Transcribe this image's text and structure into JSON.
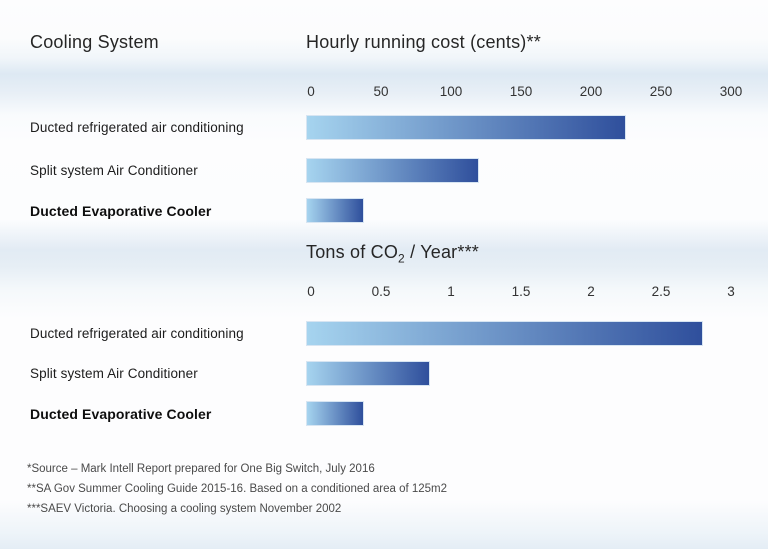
{
  "page": {
    "left_header": "Cooling System",
    "footnotes": [
      "*Source – Mark Intell Report prepared for One Big Switch, July 2016",
      "**SA Gov Summer Cooling Guide 2015-16. Based on a conditioned area of 125m2",
      "***SAEV Victoria. Choosing a cooling system November 2002"
    ],
    "colors": {
      "bar_gradient_start": "#a6d4ef",
      "bar_gradient_end": "#2f4f9c",
      "background_band": "#dde9f3",
      "text_dark": "#262626",
      "footnote_gray": "#4a4a4a"
    }
  },
  "chart_data": [
    {
      "type": "bar",
      "orientation": "horizontal",
      "title": "Hourly running cost (cents)**",
      "categories": [
        "Ducted refrigerated air conditioning",
        "Split system Air Conditioner",
        "Ducted Evaporative Cooler"
      ],
      "values": [
        225,
        120,
        38
      ],
      "xlim": [
        0,
        300
      ],
      "ticks": [
        "0",
        "50",
        "100",
        "150",
        "200",
        "250",
        "300"
      ],
      "bold_category_index": 2,
      "xlabel": "",
      "ylabel": "Cooling System",
      "grid": false,
      "legend": "none"
    },
    {
      "type": "bar",
      "orientation": "horizontal",
      "title": "Tons of CO2 / Year***",
      "title_parts": {
        "prefix": "Tons of CO",
        "subscript": "2",
        "suffix": " / Year***"
      },
      "categories": [
        "Ducted refrigerated air conditioning",
        "Split system Air Conditioner",
        "Ducted Evaporative Cooler"
      ],
      "values": [
        2.8,
        0.85,
        0.38
      ],
      "xlim": [
        0,
        3
      ],
      "ticks": [
        "0",
        "0.5",
        "1",
        "1.5",
        "2",
        "2.5",
        "3"
      ],
      "bold_category_index": 2,
      "xlabel": "",
      "ylabel": "Cooling System",
      "grid": false,
      "legend": "none"
    }
  ]
}
